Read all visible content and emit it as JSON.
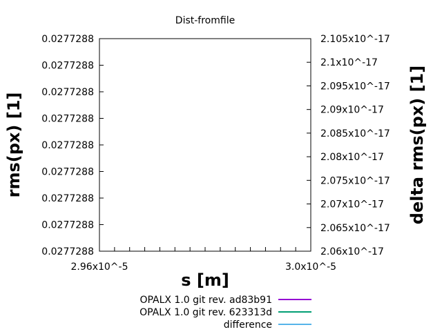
{
  "chart_data": {
    "type": "line",
    "title": "Dist-fromfile",
    "xlabel": "s [m]",
    "ylabel": "rms(px) [1]",
    "y2label": "delta rms(px) [1]",
    "grid": false,
    "legend_placement": "bottom-center",
    "y_tick_labels": [
      "0.0277288",
      "0.0277288",
      "0.0277288",
      "0.0277288",
      "0.0277288",
      "0.0277288",
      "0.0277288",
      "0.0277288",
      "0.0277288"
    ],
    "y2_tick_labels": [
      "2.06x10^-17",
      "2.065x10^-17",
      "2.07x10^-17",
      "2.075x10^-17",
      "2.08x10^-17",
      "2.085x10^-17",
      "2.09x10^-17",
      "2.095x10^-17",
      "2.1x10^-17",
      "2.105x10^-17"
    ],
    "y2lim": [
      2.06e-17,
      2.105e-17
    ],
    "x_tick_labels": [
      "2.96x10^-5",
      "",
      "",
      "",
      "",
      "",
      "",
      "",
      "",
      "",
      "",
      "",
      "",
      "",
      "3.0x10^-5"
    ],
    "series": [
      {
        "name": "OPALX 1.0 git rev. ad83b91",
        "color": "#9400d3",
        "values": []
      },
      {
        "name": "OPALX 1.0 git rev. 623313d",
        "color": "#009e73",
        "values": []
      },
      {
        "name": "difference",
        "color": "#56b4e9",
        "values": []
      }
    ]
  }
}
